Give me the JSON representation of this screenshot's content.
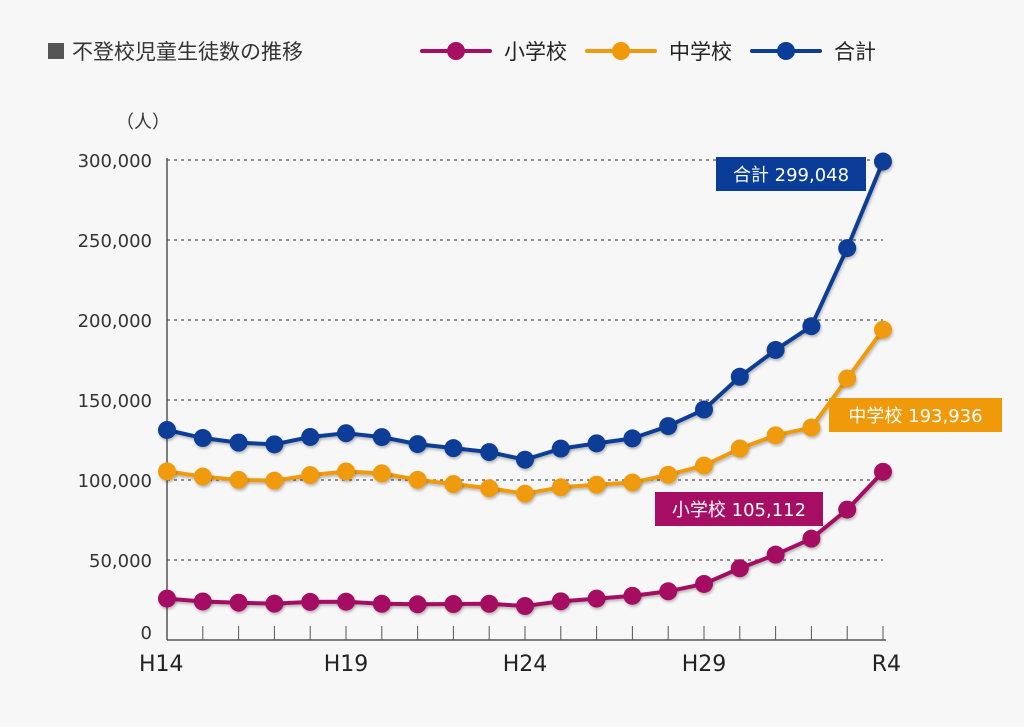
{
  "chart_data": {
    "type": "line",
    "title": "不登校児童生徒数の推移",
    "ylabel": "（人）",
    "xlabel": "",
    "ylim": [
      0,
      300000
    ],
    "yticks": [
      0,
      50000,
      100000,
      150000,
      200000,
      250000,
      300000
    ],
    "ytick_labels": [
      "0",
      "50,000",
      "100,000",
      "150,000",
      "200,000",
      "250,000",
      "300,000"
    ],
    "grid": true,
    "legend_position": "top",
    "x": [
      "H14",
      "H15",
      "H16",
      "H17",
      "H18",
      "H19",
      "H20",
      "H21",
      "H22",
      "H23",
      "H24",
      "H25",
      "H26",
      "H27",
      "H28",
      "H29",
      "H30",
      "R1",
      "R2",
      "R3",
      "R4"
    ],
    "xtick_labels": {
      "0": "H14",
      "5": "H19",
      "10": "H24",
      "15": "H29",
      "20": "R4"
    },
    "series": [
      {
        "name": "小学校",
        "color": "#a50e62",
        "values": [
          25869,
          24077,
          23318,
          22709,
          23825,
          23927,
          22652,
          22327,
          22463,
          22622,
          21243,
          24175,
          25864,
          27583,
          30448,
          35032,
          44841,
          53350,
          63350,
          81498,
          105112
        ],
        "callout": "小学校 105,112"
      },
      {
        "name": "中学校",
        "color": "#f09a0b",
        "values": [
          105383,
          102149,
          100040,
          99578,
          103069,
          105328,
          104153,
          100105,
          97428,
          94836,
          91446,
          95442,
          97033,
          98408,
          103235,
          108999,
          119687,
          127922,
          132777,
          163442,
          193936
        ],
        "callout": "中学校 193,936"
      },
      {
        "name": "合計",
        "color": "#0a3d97",
        "values": [
          131252,
          126226,
          123358,
          122287,
          126894,
          129255,
          126805,
          122432,
          119891,
          117458,
          112689,
          119617,
          122897,
          125991,
          133683,
          144031,
          164528,
          181272,
          196127,
          244940,
          299048
        ],
        "callout": "合計 299,048"
      }
    ]
  }
}
